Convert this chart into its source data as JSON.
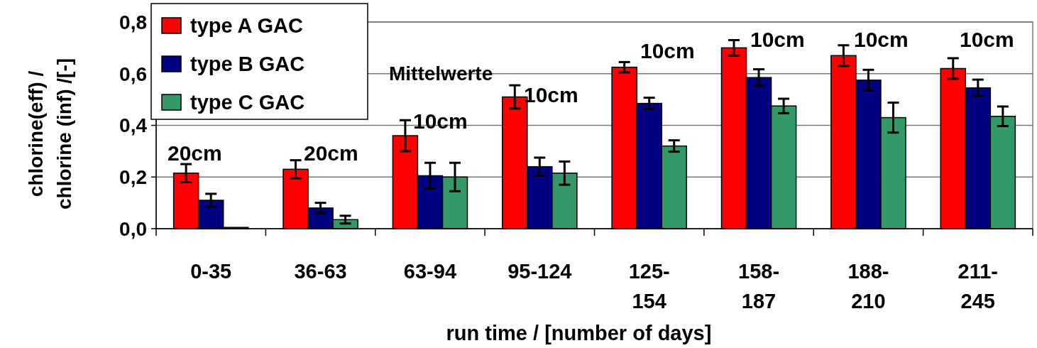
{
  "chart_data": {
    "type": "bar",
    "xlabel": "run time / [number of days]",
    "ylabel": "chlorine(eff) / chlorine (inf) /[-]",
    "categories": [
      "0-35",
      "36-63",
      "63-94",
      "95-124",
      "125-154",
      "158-187",
      "188-210",
      "211-245"
    ],
    "series": [
      {
        "name": "type A GAC",
        "color": "#ff0000",
        "values": [
          0.215,
          0.23,
          0.36,
          0.51,
          0.625,
          0.7,
          0.67,
          0.62
        ],
        "errors": [
          0.035,
          0.035,
          0.06,
          0.045,
          0.02,
          0.03,
          0.04,
          0.04
        ]
      },
      {
        "name": "type B GAC",
        "color": "#000080",
        "values": [
          0.11,
          0.08,
          0.205,
          0.24,
          0.485,
          0.585,
          0.575,
          0.545
        ],
        "errors": [
          0.025,
          0.02,
          0.05,
          0.035,
          0.022,
          0.032,
          0.04,
          0.032
        ]
      },
      {
        "name": "type C GAC",
        "color": "#339966",
        "values": [
          0.005,
          0.035,
          0.2,
          0.215,
          0.32,
          0.475,
          0.43,
          0.435
        ],
        "errors": [
          null,
          0.015,
          0.055,
          0.045,
          0.022,
          0.028,
          0.058,
          0.038
        ]
      }
    ],
    "ylim": [
      0,
      0.8
    ],
    "yticks": [
      {
        "value": 0,
        "label": "0,0"
      },
      {
        "value": 0.2,
        "label": "0,2"
      },
      {
        "value": 0.4,
        "label": "0,4"
      },
      {
        "value": 0.6,
        "label": "0,6"
      },
      {
        "value": 0.8,
        "label": "0,8"
      }
    ],
    "grid": "y",
    "legend": "top left",
    "annotations": [
      "20cm",
      "20cm",
      "10cm",
      "10cm",
      "10cm",
      "10cm",
      "10cm",
      "10cm",
      "Mittelwerte"
    ]
  }
}
